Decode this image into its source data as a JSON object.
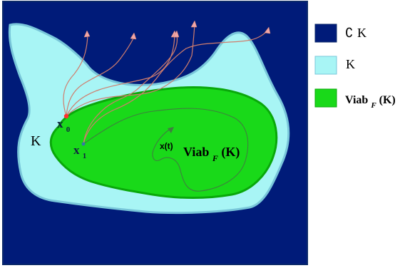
{
  "diagram": {
    "labels": {
      "x0_base": "x",
      "x0_sub": "0",
      "x1_base": "x",
      "x1_sub": "1",
      "K": "K",
      "xt": "x(t)",
      "viab_prefix": "Viab",
      "viab_sub": "F",
      "viab_suffix": "(K)"
    }
  },
  "legend": {
    "items": [
      {
        "id": "complement",
        "color": "#001b79",
        "label_symbol": "∁",
        "label_text": "K"
      },
      {
        "id": "k-set",
        "color": "#a8f5f5",
        "label_text": "K"
      },
      {
        "id": "viability-kernel",
        "color": "#19d919",
        "label_prefix": "Viab",
        "label_sub": "F",
        "label_suffix": "(K)"
      }
    ]
  },
  "colors": {
    "background": "#001b79",
    "k_fill": "#a8f5f5",
    "k_border": "#79c7da",
    "viab_fill": "#19d919",
    "viab_border": "#0aa80a",
    "trajectory": "#d07d6d",
    "arrowhead": "#f1a6a6",
    "inner_path": "#3f7f3f",
    "x0_dot": "#ff3030",
    "x1_dot": "#3377aa"
  }
}
